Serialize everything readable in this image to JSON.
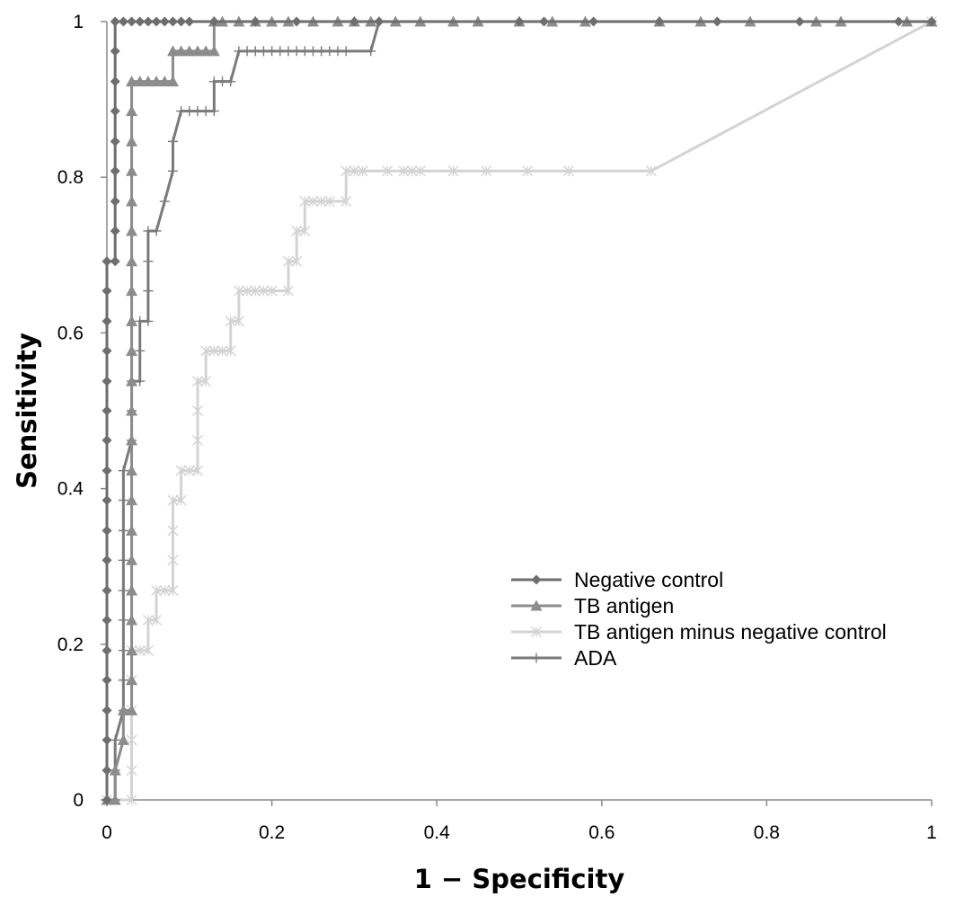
{
  "chart_data": {
    "type": "line",
    "title": "",
    "xlabel": "1 − Specificity",
    "ylabel": "Sensitivity",
    "xlim": [
      0,
      1
    ],
    "ylim": [
      0,
      1
    ],
    "x_ticks": [
      "0",
      "0.2",
      "0.4",
      "0.6",
      "0.8",
      "1"
    ],
    "y_ticks": [
      "0",
      "0.2",
      "0.4",
      "0.6",
      "0.8",
      "1"
    ],
    "grid": false,
    "legend_position": "lower-right",
    "series": [
      {
        "name": "Negative control",
        "marker": "diamond",
        "color": "#6e6e6e",
        "points": [
          [
            0,
            0
          ],
          [
            0,
            0.038
          ],
          [
            0,
            0.077
          ],
          [
            0,
            0.115
          ],
          [
            0,
            0.154
          ],
          [
            0,
            0.192
          ],
          [
            0,
            0.231
          ],
          [
            0,
            0.269
          ],
          [
            0,
            0.308
          ],
          [
            0,
            0.346
          ],
          [
            0,
            0.385
          ],
          [
            0,
            0.423
          ],
          [
            0,
            0.462
          ],
          [
            0,
            0.5
          ],
          [
            0,
            0.538
          ],
          [
            0,
            0.577
          ],
          [
            0,
            0.615
          ],
          [
            0,
            0.654
          ],
          [
            0,
            0.692
          ],
          [
            0.01,
            0.692
          ],
          [
            0.01,
            0.731
          ],
          [
            0.01,
            0.769
          ],
          [
            0.01,
            0.808
          ],
          [
            0.01,
            0.846
          ],
          [
            0.01,
            0.885
          ],
          [
            0.01,
            0.923
          ],
          [
            0.01,
            0.962
          ],
          [
            0.01,
            1
          ],
          [
            0.02,
            1
          ],
          [
            0.03,
            1
          ],
          [
            0.04,
            1
          ],
          [
            0.05,
            1
          ],
          [
            0.06,
            1
          ],
          [
            0.07,
            1
          ],
          [
            0.08,
            1
          ],
          [
            0.09,
            1
          ],
          [
            0.1,
            1
          ],
          [
            0.13,
            1
          ],
          [
            0.18,
            1
          ],
          [
            0.23,
            1
          ],
          [
            0.3,
            1
          ],
          [
            0.33,
            1
          ],
          [
            0.5,
            1
          ],
          [
            0.53,
            1
          ],
          [
            0.59,
            1
          ],
          [
            0.67,
            1
          ],
          [
            0.74,
            1
          ],
          [
            0.84,
            1
          ],
          [
            0.96,
            1
          ],
          [
            1,
            1
          ]
        ]
      },
      {
        "name": "TB antigen",
        "marker": "triangle",
        "color": "#8c8c8c",
        "points": [
          [
            0,
            0
          ],
          [
            0.01,
            0
          ],
          [
            0.01,
            0.038
          ],
          [
            0.02,
            0.077
          ],
          [
            0.02,
            0.115
          ],
          [
            0.03,
            0.115
          ],
          [
            0.03,
            0.154
          ],
          [
            0.03,
            0.192
          ],
          [
            0.03,
            0.231
          ],
          [
            0.03,
            0.269
          ],
          [
            0.03,
            0.308
          ],
          [
            0.03,
            0.346
          ],
          [
            0.03,
            0.385
          ],
          [
            0.03,
            0.423
          ],
          [
            0.03,
            0.462
          ],
          [
            0.03,
            0.5
          ],
          [
            0.03,
            0.538
          ],
          [
            0.03,
            0.577
          ],
          [
            0.03,
            0.615
          ],
          [
            0.03,
            0.654
          ],
          [
            0.03,
            0.692
          ],
          [
            0.03,
            0.731
          ],
          [
            0.03,
            0.769
          ],
          [
            0.03,
            0.808
          ],
          [
            0.03,
            0.846
          ],
          [
            0.03,
            0.885
          ],
          [
            0.03,
            0.923
          ],
          [
            0.04,
            0.923
          ],
          [
            0.05,
            0.923
          ],
          [
            0.06,
            0.923
          ],
          [
            0.07,
            0.923
          ],
          [
            0.08,
            0.923
          ],
          [
            0.08,
            0.962
          ],
          [
            0.09,
            0.962
          ],
          [
            0.1,
            0.962
          ],
          [
            0.11,
            0.962
          ],
          [
            0.12,
            0.962
          ],
          [
            0.13,
            0.962
          ],
          [
            0.13,
            1
          ],
          [
            0.14,
            1
          ],
          [
            0.16,
            1
          ],
          [
            0.18,
            1
          ],
          [
            0.2,
            1
          ],
          [
            0.22,
            1
          ],
          [
            0.25,
            1
          ],
          [
            0.28,
            1
          ],
          [
            0.3,
            1
          ],
          [
            0.32,
            1
          ],
          [
            0.35,
            1
          ],
          [
            0.38,
            1
          ],
          [
            0.42,
            1
          ],
          [
            0.45,
            1
          ],
          [
            0.5,
            1
          ],
          [
            0.54,
            1
          ],
          [
            0.58,
            1
          ],
          [
            0.67,
            1
          ],
          [
            0.72,
            1
          ],
          [
            0.78,
            1
          ],
          [
            0.86,
            1
          ],
          [
            0.89,
            1
          ],
          [
            0.97,
            1
          ],
          [
            1,
            1
          ]
        ]
      },
      {
        "name": "TB antigen minus negative control",
        "marker": "asterisk",
        "color": "#d3d3d3",
        "points": [
          [
            0,
            0
          ],
          [
            0.03,
            0
          ],
          [
            0.03,
            0.038
          ],
          [
            0.03,
            0.077
          ],
          [
            0.03,
            0.115
          ],
          [
            0.03,
            0.154
          ],
          [
            0.03,
            0.192
          ],
          [
            0.04,
            0.192
          ],
          [
            0.05,
            0.192
          ],
          [
            0.05,
            0.231
          ],
          [
            0.06,
            0.231
          ],
          [
            0.06,
            0.269
          ],
          [
            0.07,
            0.269
          ],
          [
            0.08,
            0.269
          ],
          [
            0.08,
            0.308
          ],
          [
            0.08,
            0.346
          ],
          [
            0.08,
            0.385
          ],
          [
            0.09,
            0.385
          ],
          [
            0.09,
            0.423
          ],
          [
            0.1,
            0.423
          ],
          [
            0.11,
            0.423
          ],
          [
            0.11,
            0.462
          ],
          [
            0.11,
            0.5
          ],
          [
            0.11,
            0.538
          ],
          [
            0.12,
            0.538
          ],
          [
            0.12,
            0.577
          ],
          [
            0.13,
            0.577
          ],
          [
            0.14,
            0.577
          ],
          [
            0.15,
            0.577
          ],
          [
            0.15,
            0.615
          ],
          [
            0.16,
            0.615
          ],
          [
            0.16,
            0.654
          ],
          [
            0.17,
            0.654
          ],
          [
            0.18,
            0.654
          ],
          [
            0.19,
            0.654
          ],
          [
            0.2,
            0.654
          ],
          [
            0.22,
            0.654
          ],
          [
            0.22,
            0.692
          ],
          [
            0.23,
            0.692
          ],
          [
            0.23,
            0.731
          ],
          [
            0.24,
            0.731
          ],
          [
            0.24,
            0.769
          ],
          [
            0.25,
            0.769
          ],
          [
            0.26,
            0.769
          ],
          [
            0.27,
            0.769
          ],
          [
            0.29,
            0.769
          ],
          [
            0.29,
            0.808
          ],
          [
            0.3,
            0.808
          ],
          [
            0.31,
            0.808
          ],
          [
            0.34,
            0.808
          ],
          [
            0.36,
            0.808
          ],
          [
            0.37,
            0.808
          ],
          [
            0.38,
            0.808
          ],
          [
            0.42,
            0.808
          ],
          [
            0.46,
            0.808
          ],
          [
            0.51,
            0.808
          ],
          [
            0.56,
            0.808
          ],
          [
            0.66,
            0.808
          ],
          [
            1,
            1
          ]
        ]
      },
      {
        "name": "ADA",
        "marker": "plus",
        "color": "#7a7a7a",
        "points": [
          [
            0,
            0
          ],
          [
            0.01,
            0
          ],
          [
            0.01,
            0.038
          ],
          [
            0.01,
            0.077
          ],
          [
            0.02,
            0.115
          ],
          [
            0.02,
            0.154
          ],
          [
            0.02,
            0.192
          ],
          [
            0.02,
            0.231
          ],
          [
            0.02,
            0.269
          ],
          [
            0.02,
            0.308
          ],
          [
            0.02,
            0.346
          ],
          [
            0.02,
            0.385
          ],
          [
            0.02,
            0.423
          ],
          [
            0.03,
            0.462
          ],
          [
            0.03,
            0.5
          ],
          [
            0.03,
            0.538
          ],
          [
            0.04,
            0.538
          ],
          [
            0.04,
            0.577
          ],
          [
            0.04,
            0.615
          ],
          [
            0.05,
            0.615
          ],
          [
            0.05,
            0.654
          ],
          [
            0.05,
            0.692
          ],
          [
            0.05,
            0.731
          ],
          [
            0.06,
            0.731
          ],
          [
            0.07,
            0.769
          ],
          [
            0.08,
            0.808
          ],
          [
            0.08,
            0.846
          ],
          [
            0.09,
            0.885
          ],
          [
            0.1,
            0.885
          ],
          [
            0.11,
            0.885
          ],
          [
            0.12,
            0.885
          ],
          [
            0.13,
            0.885
          ],
          [
            0.13,
            0.923
          ],
          [
            0.14,
            0.923
          ],
          [
            0.15,
            0.923
          ],
          [
            0.16,
            0.962
          ],
          [
            0.17,
            0.962
          ],
          [
            0.18,
            0.962
          ],
          [
            0.19,
            0.962
          ],
          [
            0.2,
            0.962
          ],
          [
            0.21,
            0.962
          ],
          [
            0.22,
            0.962
          ],
          [
            0.23,
            0.962
          ],
          [
            0.24,
            0.962
          ],
          [
            0.25,
            0.962
          ],
          [
            0.26,
            0.962
          ],
          [
            0.27,
            0.962
          ],
          [
            0.28,
            0.962
          ],
          [
            0.29,
            0.962
          ],
          [
            0.32,
            0.962
          ],
          [
            0.33,
            1
          ],
          [
            1,
            1
          ]
        ]
      }
    ]
  }
}
